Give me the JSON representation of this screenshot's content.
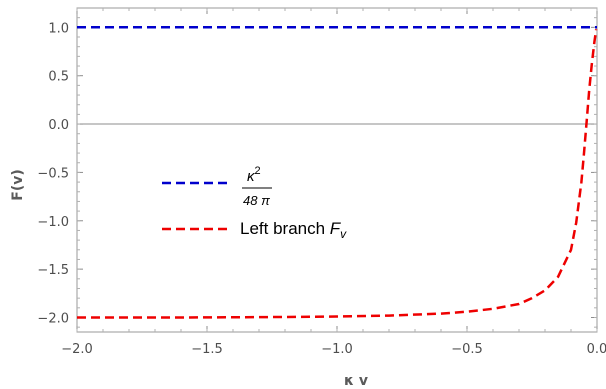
{
  "chart_data": {
    "type": "line",
    "xlabel": "κ v",
    "ylabel": "F(v)",
    "xlim": [
      -2.0,
      0.0
    ],
    "ylim": [
      -2.15,
      1.2
    ],
    "x_ticks": [
      "−2.0",
      "−1.5",
      "−1.0",
      "−0.5",
      "0.0"
    ],
    "x_tick_values": [
      -2.0,
      -1.5,
      -1.0,
      -0.5,
      0.0
    ],
    "y_ticks": [
      "1.0",
      "0.5",
      "0.0",
      "−0.5",
      "−1.0",
      "−1.5",
      "−2.0"
    ],
    "y_tick_values": [
      1.0,
      0.5,
      0.0,
      -0.5,
      -1.0,
      -1.5,
      -2.0
    ],
    "grid": false,
    "legend_position": "center-left",
    "series": [
      {
        "color": "#0000cc",
        "style": "dashed",
        "x": [
          -2.0,
          0.0
        ],
        "y": [
          1.0,
          1.0
        ]
      },
      {
        "color": "#ee0000",
        "style": "dashed",
        "x": [
          -2.0,
          -1.6,
          -1.2,
          -1.0,
          -0.8,
          -0.6,
          -0.5,
          -0.4,
          -0.3,
          -0.25,
          -0.2,
          -0.15,
          -0.1,
          -0.08,
          -0.06,
          -0.05,
          -0.04,
          -0.03,
          -0.02,
          -0.01,
          -0.003
        ],
        "y": [
          -2.0,
          -2.0,
          -1.995,
          -1.99,
          -1.98,
          -1.96,
          -1.94,
          -1.91,
          -1.86,
          -1.8,
          -1.72,
          -1.58,
          -1.3,
          -1.02,
          -0.6,
          -0.3,
          0.02,
          0.35,
          0.62,
          0.85,
          0.98
        ]
      }
    ],
    "legend": {
      "blue_numerator": "κ",
      "blue_numerator_exp": "2",
      "blue_denominator": "48 π",
      "red_label": "Left branch ",
      "red_math": "F",
      "red_math_sub": "v"
    }
  }
}
